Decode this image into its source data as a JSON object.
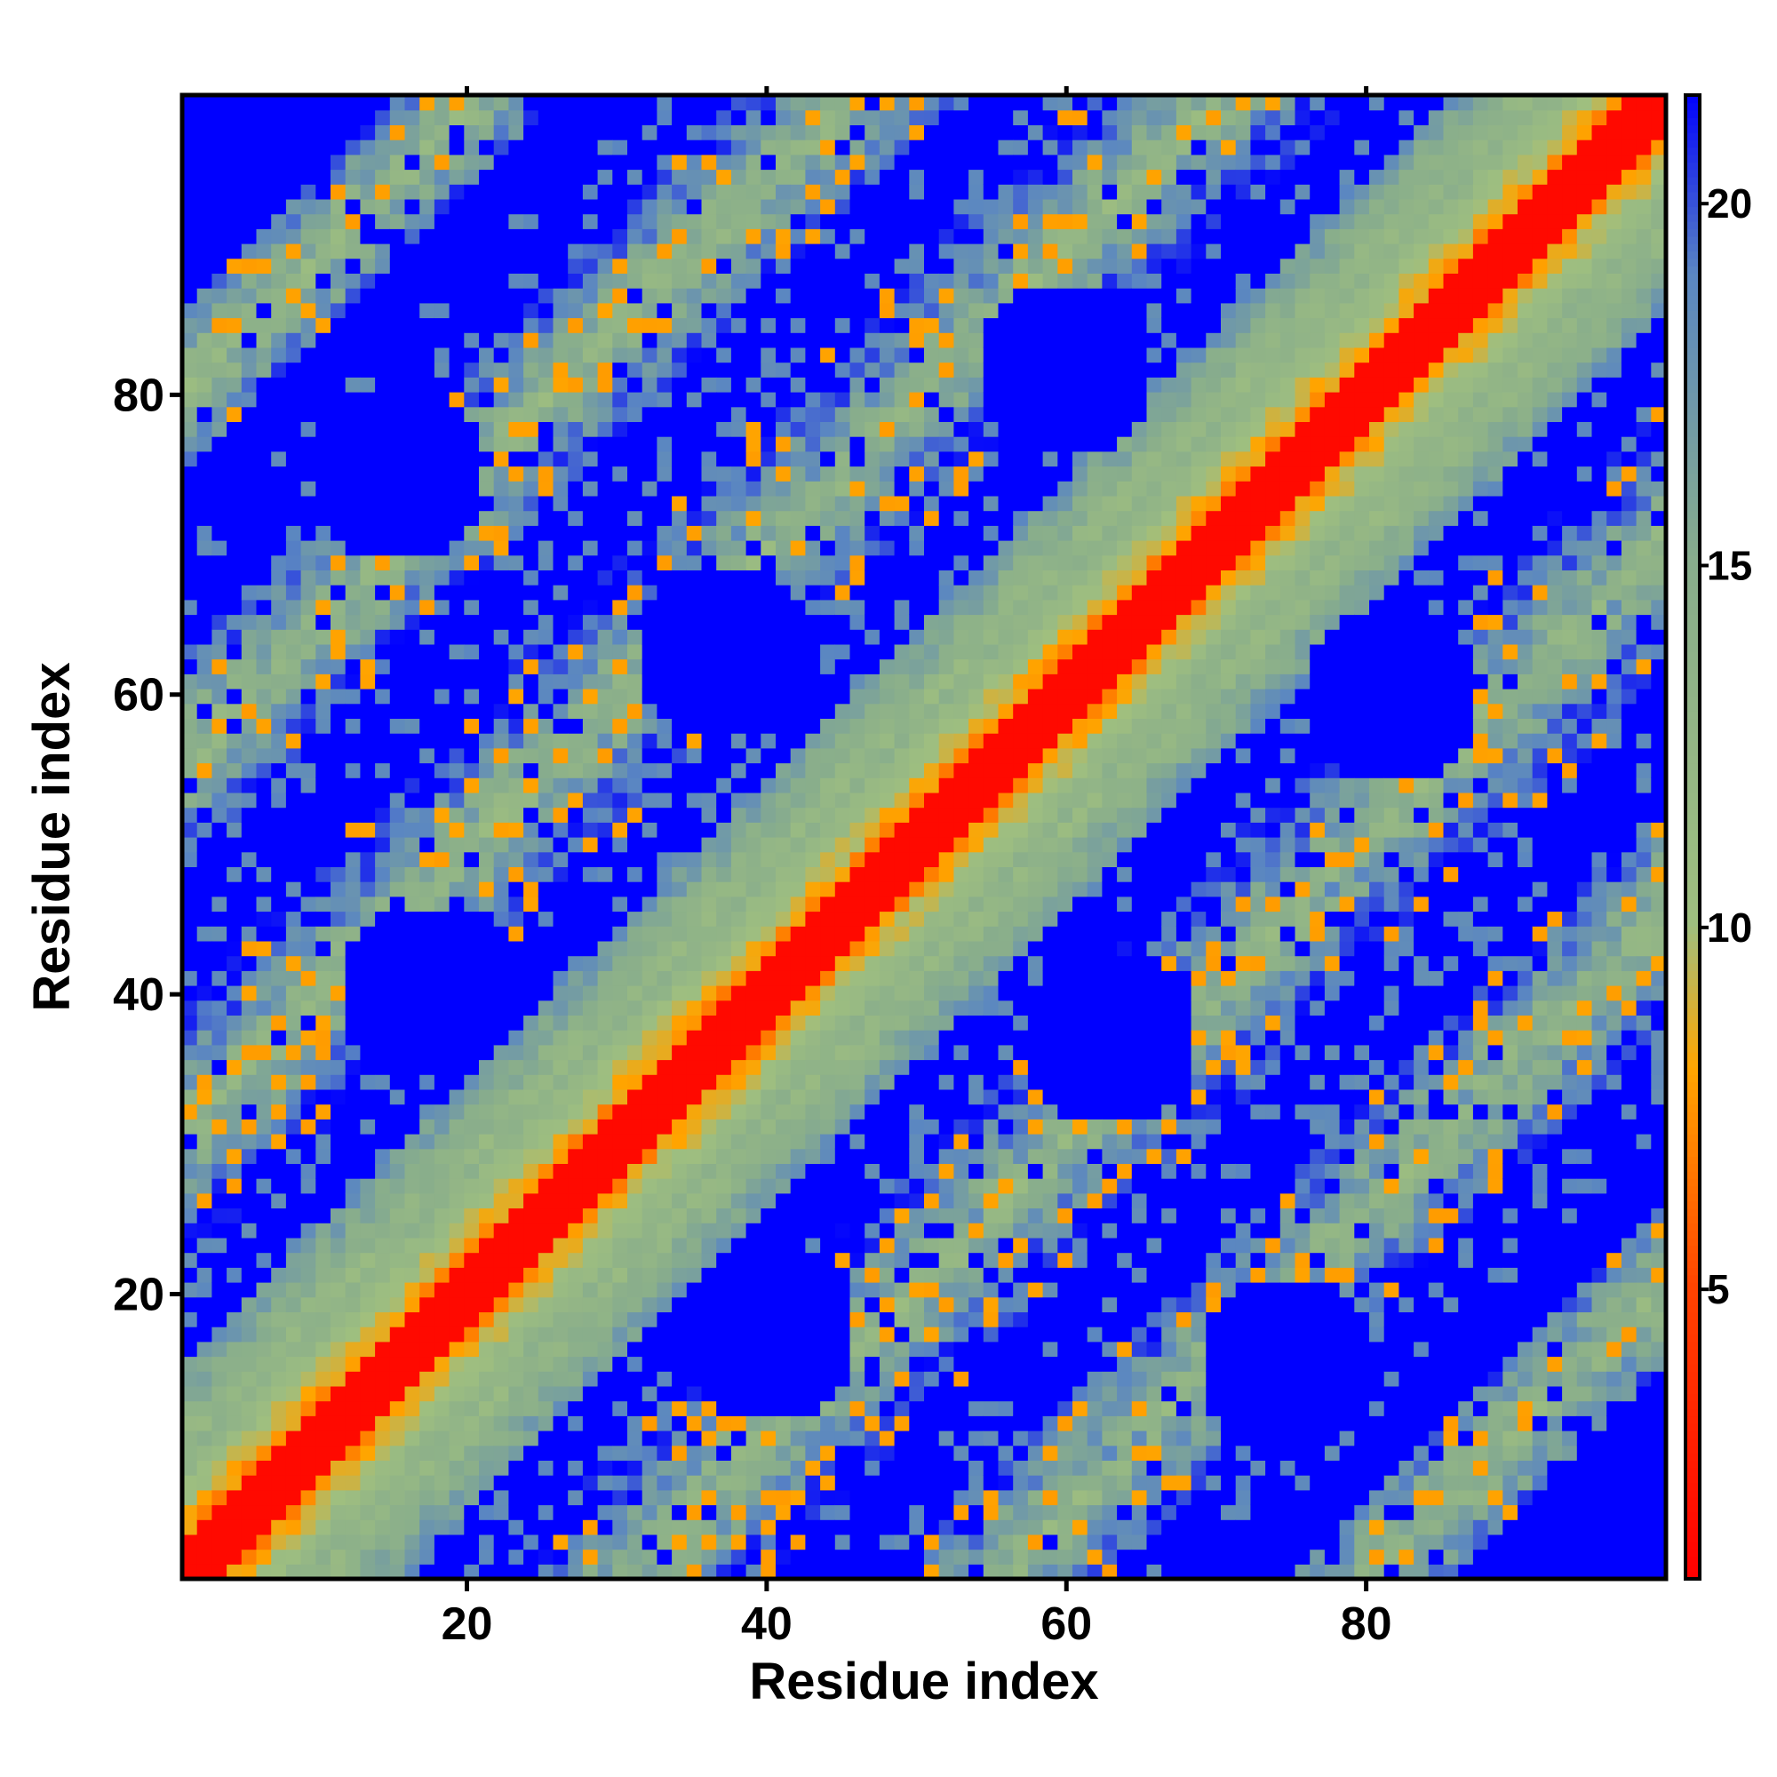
{
  "chart_data": {
    "type": "heatmap",
    "description": "Residue-residue distance map (symmetric). Cell values are distances; pattern follows a strong main diagonal with off-diagonal contact bands.",
    "n_residues": 100,
    "xlabel": "Residue index",
    "ylabel": "Residue index",
    "xlim": [
      1,
      100
    ],
    "ylim": [
      1,
      100
    ],
    "x_ticks": [
      20,
      40,
      60,
      80
    ],
    "y_ticks": [
      20,
      40,
      60,
      80
    ],
    "colorbar": {
      "ticks": [
        5,
        10,
        15,
        20
      ],
      "range": [
        1,
        21.5
      ],
      "stops": [
        {
          "value": 1,
          "color": "#ff0000"
        },
        {
          "value": 5,
          "color": "#ff4400"
        },
        {
          "value": 8,
          "color": "#ffa500"
        },
        {
          "value": 10,
          "color": "#9fbf7f"
        },
        {
          "value": 15,
          "color": "#88ad8c"
        },
        {
          "value": 19,
          "color": "#5a86c2"
        },
        {
          "value": 21.5,
          "color": "#0000ff"
        }
      ]
    },
    "pattern": {
      "diagonal_band_width": 8,
      "contact_bands": [
        {
          "center_offset": 30,
          "width": 9
        },
        {
          "center_offset": 55,
          "width": 7
        },
        {
          "center_offset": 80,
          "width": 5
        }
      ],
      "blue_holes": [
        {
          "i": 17,
          "j": 40
        },
        {
          "i": 40,
          "j": 17
        },
        {
          "i": 37,
          "j": 63
        },
        {
          "i": 63,
          "j": 37
        },
        {
          "i": 60,
          "j": 82
        },
        {
          "i": 82,
          "j": 60
        },
        {
          "i": 15,
          "j": 75
        },
        {
          "i": 75,
          "j": 15
        }
      ]
    }
  }
}
